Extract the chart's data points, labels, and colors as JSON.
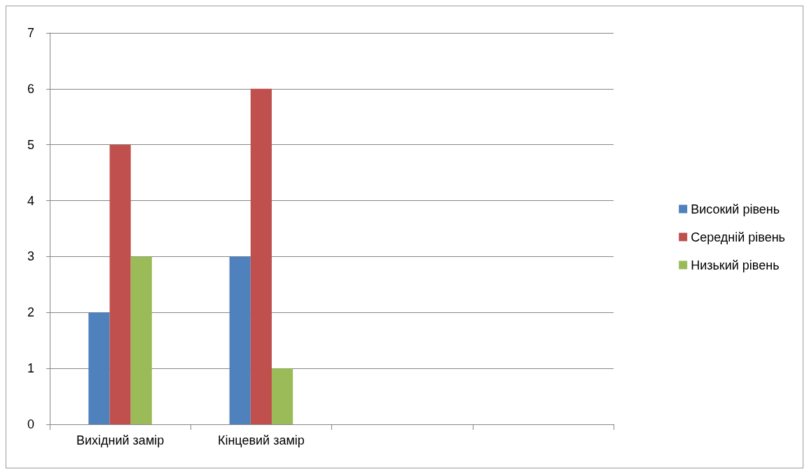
{
  "chart_data": {
    "type": "bar",
    "categories": [
      "Вихідний замір",
      "Кінцевий замір",
      null,
      null
    ],
    "series": [
      {
        "name": "Високий рівень",
        "color": "#4f81bd",
        "values": [
          2,
          3,
          null,
          null
        ]
      },
      {
        "name": "Середній рівень",
        "color": "#c0504d",
        "values": [
          5,
          6,
          null,
          null
        ]
      },
      {
        "name": "Низький рівень",
        "color": "#9bbb59",
        "values": [
          3,
          1,
          null,
          null
        ]
      }
    ],
    "ylim": [
      0,
      7
    ],
    "yticks": [
      0,
      1,
      2,
      3,
      4,
      5,
      6,
      7
    ],
    "grid": "y",
    "legend": "right"
  }
}
